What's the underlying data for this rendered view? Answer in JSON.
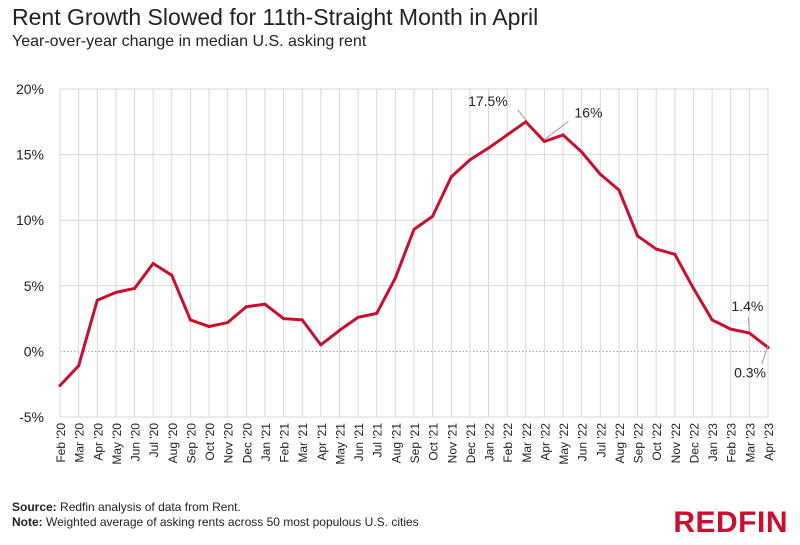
{
  "header": {
    "title": "Rent Growth Slowed for 11th-Straight Month in April",
    "subtitle": "Year-over-year change in median U.S. asking rent"
  },
  "footer": {
    "source_label": "Source:",
    "source_text": "Redfin analysis of data from Rent.",
    "note_label": "Note:",
    "note_text": "Weighted average of asking rents across 50 most populous U.S. cities"
  },
  "brand": {
    "logo_text": "REDFIN",
    "color": "#c8102e"
  },
  "chart_data": {
    "type": "line",
    "title": "Rent Growth Slowed for 11th-Straight Month in April",
    "subtitle": "Year-over-year change in median U.S. asking rent",
    "xlabel": "",
    "ylabel": "",
    "ylim": [
      -5,
      20
    ],
    "yticks": [
      -5,
      0,
      5,
      10,
      15,
      20
    ],
    "ytick_labels": [
      "-5%",
      "0%",
      "5%",
      "10%",
      "15%",
      "20%"
    ],
    "grid": true,
    "zero_line": "dotted",
    "categories": [
      "Feb '20",
      "Mar '20",
      "Apr '20",
      "May '20",
      "Jun '20",
      "Jul '20",
      "Aug '20",
      "Sep '20",
      "Oct '20",
      "Nov '20",
      "Dec '20",
      "Jan '21",
      "Feb '21",
      "Mar '21",
      "Apr '21",
      "May '21",
      "Jun '21",
      "Jul '21",
      "Aug '21",
      "Sep '21",
      "Oct '21",
      "Nov '21",
      "Dec '21",
      "Jan '22",
      "Feb '22",
      "Mar '22",
      "Apr '22",
      "May '22",
      "Jun '22",
      "Jul '22",
      "Aug '22",
      "Sep '22",
      "Oct '22",
      "Nov '22",
      "Dec '22",
      "Jan '23",
      "Feb '23",
      "Mar '23",
      "Apr '23"
    ],
    "series": [
      {
        "color": "#c8102e",
        "values": [
          -2.6,
          -1.1,
          3.9,
          4.5,
          4.8,
          6.7,
          5.8,
          2.4,
          1.9,
          2.2,
          3.4,
          3.6,
          2.5,
          2.4,
          0.5,
          1.6,
          2.6,
          2.9,
          5.6,
          9.3,
          10.3,
          13.3,
          14.6,
          15.5,
          16.5,
          17.5,
          16.0,
          16.5,
          15.2,
          13.5,
          12.3,
          8.8,
          7.8,
          7.4,
          4.8,
          2.4,
          1.7,
          1.4,
          0.3
        ]
      }
    ],
    "annotations": [
      {
        "text": "17.5%",
        "index": 25,
        "value": 17.5
      },
      {
        "text": "16%",
        "index": 26,
        "value": 16.0
      },
      {
        "text": "1.4%",
        "index": 37,
        "value": 1.4
      },
      {
        "text": "0.3%",
        "index": 38,
        "value": 0.3
      }
    ]
  }
}
